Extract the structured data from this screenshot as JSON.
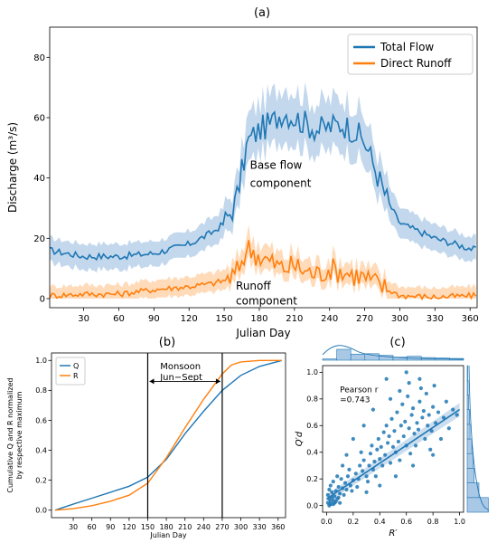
{
  "panel_labels": {
    "a": "(a)",
    "b": "(b)",
    "c": "(c)"
  },
  "colors": {
    "total": "#1f77b4",
    "runoff": "#ff7f0e",
    "band_total": "#a9c8e6",
    "band_runoff": "#ffcc9c"
  },
  "chart_data": [
    {
      "id": "a",
      "type": "line",
      "xlabel": "Julian Day",
      "ylabel": "Discharge (m³/s)",
      "xlim": [
        1,
        366
      ],
      "ylim": [
        -3,
        90
      ],
      "xticks": [
        30,
        60,
        90,
        120,
        150,
        180,
        210,
        240,
        270,
        300,
        330,
        360
      ],
      "yticks": [
        0,
        20,
        40,
        60,
        80
      ],
      "legend_position": "top-right",
      "series": [
        {
          "name": "Total Flow",
          "x": [
            1,
            30,
            60,
            90,
            120,
            140,
            150,
            160,
            170,
            180,
            190,
            200,
            210,
            220,
            230,
            240,
            250,
            260,
            270,
            280,
            290,
            300,
            330,
            366
          ],
          "y": [
            16,
            14,
            14,
            15,
            18,
            22,
            25,
            32,
            52,
            56,
            58,
            62,
            60,
            58,
            56,
            57,
            58,
            56,
            52,
            42,
            32,
            25,
            20,
            16
          ]
        },
        {
          "name": "Direct Runoff",
          "x": [
            1,
            30,
            60,
            90,
            120,
            140,
            150,
            160,
            170,
            180,
            190,
            200,
            210,
            220,
            230,
            240,
            250,
            260,
            270,
            280,
            290,
            300,
            330,
            366
          ],
          "y": [
            1,
            1.5,
            1.5,
            3,
            4,
            5,
            6,
            8,
            17,
            14,
            12,
            10,
            11,
            9,
            8,
            10,
            9,
            8,
            7,
            5,
            3,
            1,
            0.5,
            1
          ]
        }
      ],
      "annotations": [
        {
          "text": "Base flow",
          "x": 172,
          "y": 43
        },
        {
          "text": "component",
          "x": 172,
          "y": 37
        },
        {
          "text": "Runoff",
          "x": 160,
          "y": 3
        },
        {
          "text": "component",
          "x": 160,
          "y": -2
        }
      ]
    },
    {
      "id": "b",
      "type": "line",
      "xlabel": "Julian Day",
      "ylabel": [
        "Cumulative Q and R normalized",
        "by respective maximum"
      ],
      "xlim": [
        -5,
        372
      ],
      "ylim": [
        -0.05,
        1.05
      ],
      "xticks": [
        30,
        60,
        90,
        120,
        150,
        180,
        210,
        240,
        270,
        300,
        330,
        360
      ],
      "yticks": [
        0.0,
        0.2,
        0.4,
        0.6,
        0.8,
        1.0
      ],
      "legend_position": "top-left",
      "series": [
        {
          "name": "Q",
          "x": [
            1,
            30,
            60,
            90,
            120,
            150,
            180,
            210,
            240,
            270,
            300,
            330,
            366
          ],
          "y": [
            0,
            0.04,
            0.08,
            0.12,
            0.16,
            0.22,
            0.34,
            0.51,
            0.66,
            0.8,
            0.9,
            0.96,
            1.0
          ]
        },
        {
          "name": "R",
          "x": [
            1,
            30,
            60,
            90,
            120,
            150,
            180,
            210,
            240,
            270,
            285,
            300,
            330,
            366
          ],
          "y": [
            0,
            0.01,
            0.03,
            0.06,
            0.1,
            0.18,
            0.35,
            0.55,
            0.74,
            0.91,
            0.97,
            0.99,
            1.0,
            1.0
          ]
        }
      ],
      "vlines": [
        150,
        270
      ],
      "annotation": {
        "lines": [
          "Monsoon",
          "Jun−Sept"
        ],
        "x": 170,
        "y": 0.99
      }
    },
    {
      "id": "c",
      "type": "scatter",
      "xlabel": "R′",
      "ylabel": "Q′d",
      "xlim": [
        -0.03,
        1.03
      ],
      "ylim": [
        -0.05,
        1.05
      ],
      "xticks": [
        0.0,
        0.2,
        0.4,
        0.6,
        0.8,
        1.0
      ],
      "yticks": [
        0.0,
        0.2,
        0.4,
        0.6,
        0.8,
        1.0
      ],
      "annotation": {
        "lines": [
          "Pearson r",
          "=0.743"
        ],
        "x": 0.1,
        "y": 0.85
      },
      "fit": {
        "x": [
          0,
          1
        ],
        "y": [
          0.05,
          0.72
        ]
      },
      "points": [
        [
          0.01,
          0.02
        ],
        [
          0.02,
          0.05
        ],
        [
          0.03,
          0.03
        ],
        [
          0.01,
          0.08
        ],
        [
          0.04,
          0.1
        ],
        [
          0.05,
          0.04
        ],
        [
          0.02,
          0.12
        ],
        [
          0.06,
          0.07
        ],
        [
          0.03,
          0.15
        ],
        [
          0.07,
          0.11
        ],
        [
          0.08,
          0.05
        ],
        [
          0.05,
          0.18
        ],
        [
          0.1,
          0.09
        ],
        [
          0.09,
          0.14
        ],
        [
          0.12,
          0.13
        ],
        [
          0.11,
          0.2
        ],
        [
          0.04,
          0.06
        ],
        [
          0.06,
          0.02
        ],
        [
          0.13,
          0.08
        ],
        [
          0.14,
          0.17
        ],
        [
          0.15,
          0.12
        ],
        [
          0.16,
          0.22
        ],
        [
          0.18,
          0.15
        ],
        [
          0.2,
          0.19
        ],
        [
          0.17,
          0.27
        ],
        [
          0.22,
          0.24
        ],
        [
          0.19,
          0.11
        ],
        [
          0.24,
          0.2
        ],
        [
          0.25,
          0.3
        ],
        [
          0.23,
          0.14
        ],
        [
          0.27,
          0.26
        ],
        [
          0.28,
          0.34
        ],
        [
          0.3,
          0.22
        ],
        [
          0.26,
          0.4
        ],
        [
          0.32,
          0.3
        ],
        [
          0.31,
          0.18
        ],
        [
          0.33,
          0.39
        ],
        [
          0.35,
          0.27
        ],
        [
          0.34,
          0.45
        ],
        [
          0.36,
          0.33
        ],
        [
          0.38,
          0.42
        ],
        [
          0.37,
          0.22
        ],
        [
          0.4,
          0.35
        ],
        [
          0.39,
          0.5
        ],
        [
          0.42,
          0.3
        ],
        [
          0.41,
          0.44
        ],
        [
          0.43,
          0.55
        ],
        [
          0.44,
          0.38
        ],
        [
          0.46,
          0.47
        ],
        [
          0.45,
          0.6
        ],
        [
          0.48,
          0.32
        ],
        [
          0.47,
          0.52
        ],
        [
          0.5,
          0.44
        ],
        [
          0.49,
          0.65
        ],
        [
          0.52,
          0.4
        ],
        [
          0.51,
          0.56
        ],
        [
          0.53,
          0.7
        ],
        [
          0.54,
          0.48
        ],
        [
          0.56,
          0.6
        ],
        [
          0.55,
          0.34
        ],
        [
          0.58,
          0.52
        ],
        [
          0.57,
          0.76
        ],
        [
          0.6,
          0.45
        ],
        [
          0.59,
          0.63
        ],
        [
          0.62,
          0.58
        ],
        [
          0.61,
          0.82
        ],
        [
          0.63,
          0.39
        ],
        [
          0.64,
          0.68
        ],
        [
          0.66,
          0.54
        ],
        [
          0.65,
          0.73
        ],
        [
          0.68,
          0.62
        ],
        [
          0.67,
          0.45
        ],
        [
          0.7,
          0.78
        ],
        [
          0.69,
          0.57
        ],
        [
          0.72,
          0.66
        ],
        [
          0.71,
          0.88
        ],
        [
          0.74,
          0.5
        ],
        [
          0.73,
          0.71
        ],
        [
          0.76,
          0.6
        ],
        [
          0.75,
          0.84
        ],
        [
          0.78,
          0.42
        ],
        [
          0.77,
          0.68
        ],
        [
          0.8,
          0.74
        ],
        [
          0.79,
          0.56
        ],
        [
          0.82,
          0.62
        ],
        [
          0.81,
          0.9
        ],
        [
          0.84,
          0.7
        ],
        [
          0.86,
          0.5
        ],
        [
          0.88,
          0.66
        ],
        [
          0.9,
          0.78
        ],
        [
          0.92,
          0.58
        ],
        [
          0.95,
          0.72
        ],
        [
          0.98,
          0.68
        ],
        [
          0.6,
          1.0
        ],
        [
          0.45,
          0.95
        ],
        [
          0.7,
          0.95
        ],
        [
          0.35,
          0.72
        ],
        [
          0.28,
          0.6
        ],
        [
          0.2,
          0.5
        ],
        [
          0.15,
          0.38
        ],
        [
          0.52,
          0.22
        ],
        [
          0.65,
          0.3
        ],
        [
          0.8,
          0.38
        ],
        [
          0.4,
          0.15
        ],
        [
          0.3,
          0.1
        ],
        [
          0.55,
          0.86
        ],
        [
          0.62,
          0.92
        ],
        [
          0.48,
          0.8
        ],
        [
          0.08,
          0.22
        ],
        [
          0.12,
          0.3
        ],
        [
          0.03,
          0.01
        ],
        [
          0.02,
          0.0
        ],
        [
          0.07,
          0.03
        ],
        [
          0.1,
          0.02
        ],
        [
          0.09,
          0.06
        ],
        [
          0.05,
          0.01
        ]
      ]
    }
  ]
}
